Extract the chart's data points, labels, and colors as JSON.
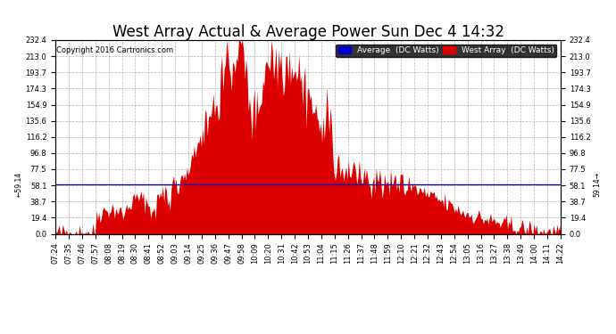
{
  "title": "West Array Actual & Average Power Sun Dec 4 14:32",
  "copyright": "Copyright 2016 Cartronics.com",
  "legend_avg": "Average  (DC Watts)",
  "legend_west": "West Array  (DC Watts)",
  "avg_value": 59.14,
  "ylim": [
    0.0,
    232.4
  ],
  "yticks": [
    0.0,
    19.4,
    38.7,
    58.1,
    77.5,
    96.8,
    116.2,
    135.6,
    154.9,
    174.3,
    193.7,
    213.0,
    232.4
  ],
  "xtick_labels": [
    "07:24",
    "07:35",
    "07:46",
    "07:57",
    "08:08",
    "08:19",
    "08:30",
    "08:41",
    "08:52",
    "09:03",
    "09:14",
    "09:25",
    "09:36",
    "09:47",
    "09:58",
    "10:09",
    "10:20",
    "10:31",
    "10:42",
    "10:53",
    "11:04",
    "11:15",
    "11:26",
    "11:37",
    "11:48",
    "11:59",
    "12:10",
    "12:21",
    "12:32",
    "12:43",
    "12:54",
    "13:05",
    "13:16",
    "13:27",
    "13:38",
    "13:49",
    "14:00",
    "14:11",
    "14:22"
  ],
  "background_color": "#ffffff",
  "fill_color": "#dd0000",
  "avg_line_color": "#0000bb",
  "grid_color": "#aaaaaa",
  "title_fontsize": 12,
  "tick_fontsize": 6.0,
  "copyright_fontsize": 6.0,
  "legend_fontsize": 6.5
}
